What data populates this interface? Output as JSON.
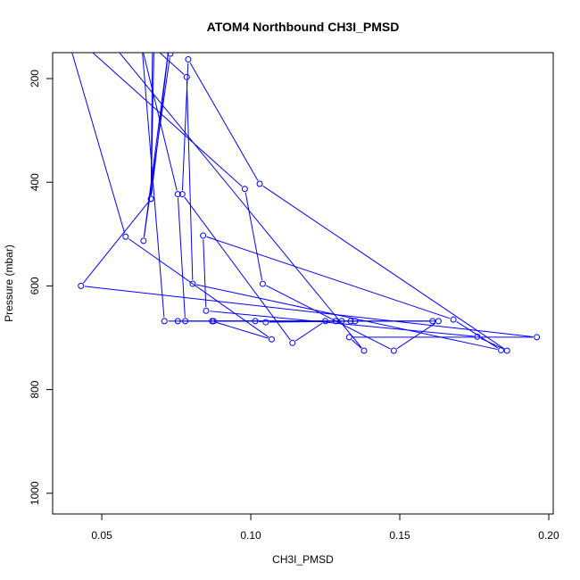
{
  "chart_data": {
    "type": "line",
    "title": "ATOM4 Northbound CH3I_PMSD",
    "xlabel": "CH3I_PMSD",
    "ylabel": "Pressure (mbar)",
    "xlim": [
      0.0335,
      0.2015
    ],
    "ylim": [
      1040,
      150
    ],
    "y_reversed": true,
    "x_ticks": [
      0.05,
      0.1,
      0.15,
      0.2
    ],
    "x_tick_labels": [
      "0.05",
      "0.10",
      "0.15",
      "0.20"
    ],
    "y_ticks": [
      200,
      400,
      600,
      800,
      1000
    ],
    "y_tick_labels": [
      "200",
      "400",
      "600",
      "800",
      "1000"
    ],
    "grid": false,
    "series_color": "#0000ff",
    "series": [
      {
        "marker": "open-circle",
        "points": [
          {
            "x": 0.0795,
            "y": 140,
            "m": false
          },
          {
            "x": 0.073,
            "y": 152,
            "m": true
          },
          {
            "x": 0.064,
            "y": 513,
            "m": true
          },
          {
            "x": 0.0725,
            "y": 140,
            "m": false
          },
          {
            "x": 0.0665,
            "y": 432,
            "m": true
          },
          {
            "x": 0.043,
            "y": 600,
            "m": true
          },
          {
            "x": 0.196,
            "y": 699,
            "m": true
          },
          {
            "x": 0.133,
            "y": 699,
            "m": true
          },
          {
            "x": 0.138,
            "y": 725,
            "m": true
          },
          {
            "x": 0.0545,
            "y": 140,
            "m": false
          },
          {
            "x": 0.0395,
            "y": 140,
            "m": false
          },
          {
            "x": 0.058,
            "y": 505,
            "m": true
          },
          {
            "x": 0.107,
            "y": 703,
            "m": true
          },
          {
            "x": 0.087,
            "y": 668,
            "m": true
          },
          {
            "x": 0.163,
            "y": 668,
            "m": true
          },
          {
            "x": 0.148,
            "y": 725,
            "m": true
          },
          {
            "x": 0.104,
            "y": 596,
            "m": true
          },
          {
            "x": 0.098,
            "y": 413,
            "m": true
          },
          {
            "x": 0.045,
            "y": 140,
            "m": false
          },
          {
            "x": 0.067,
            "y": 140,
            "m": false
          },
          {
            "x": 0.0665,
            "y": 432,
            "m": true
          },
          {
            "x": 0.0675,
            "y": 140,
            "m": false
          },
          {
            "x": 0.0785,
            "y": 197,
            "m": true
          },
          {
            "x": 0.0805,
            "y": 596,
            "m": true
          },
          {
            "x": 0.184,
            "y": 724,
            "m": true
          },
          {
            "x": 0.168,
            "y": 665,
            "m": true
          },
          {
            "x": 0.084,
            "y": 503,
            "m": true
          },
          {
            "x": 0.085,
            "y": 648,
            "m": true
          },
          {
            "x": 0.176,
            "y": 698,
            "m": true
          },
          {
            "x": 0.186,
            "y": 725,
            "m": true
          },
          {
            "x": 0.103,
            "y": 403,
            "m": true
          },
          {
            "x": 0.079,
            "y": 163,
            "m": true
          },
          {
            "x": 0.077,
            "y": 423,
            "m": true
          },
          {
            "x": 0.114,
            "y": 710,
            "m": true
          },
          {
            "x": 0.125,
            "y": 668,
            "m": true
          },
          {
            "x": 0.071,
            "y": 668,
            "m": true
          },
          {
            "x": 0.0635,
            "y": 140,
            "m": false
          },
          {
            "x": 0.0755,
            "y": 423,
            "m": true
          },
          {
            "x": 0.078,
            "y": 668,
            "m": true
          },
          {
            "x": 0.161,
            "y": 668,
            "m": true
          },
          {
            "x": 0.1335,
            "y": 668,
            "m": true
          },
          {
            "x": 0.1285,
            "y": 668,
            "m": true
          },
          {
            "x": 0.0875,
            "y": 668,
            "m": true
          },
          {
            "x": 0.1015,
            "y": 668,
            "m": true
          },
          {
            "x": 0.105,
            "y": 670,
            "m": true
          },
          {
            "x": 0.135,
            "y": 668,
            "m": true
          },
          {
            "x": 0.1305,
            "y": 668,
            "m": true
          },
          {
            "x": 0.0755,
            "y": 668,
            "m": true
          }
        ]
      }
    ]
  }
}
